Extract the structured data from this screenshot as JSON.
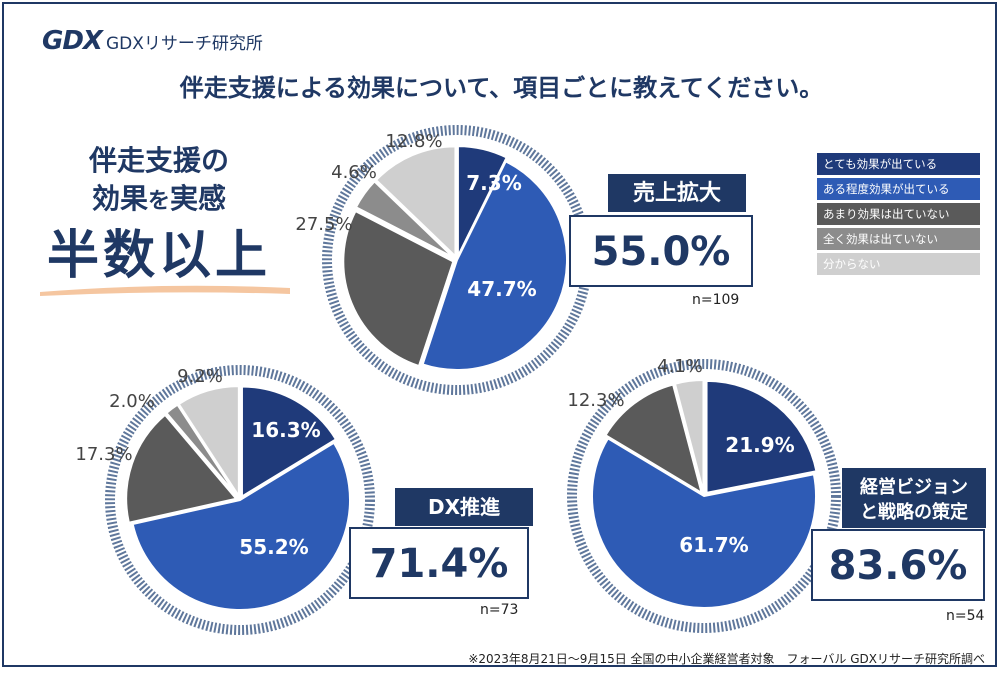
{
  "header": {
    "logo_mark": "GDX",
    "logo_text": "GDXリサーチ研究所",
    "title": "伴走支援による効果について、項目ごとに教えてください。"
  },
  "callout": {
    "line1": "伴走支援の",
    "line2_a": "効果",
    "line2_b": "を",
    "line2_c": "実感",
    "line3": "半数以上"
  },
  "legend": [
    {
      "label": "とても効果が出ている",
      "color": "#1f3a7a"
    },
    {
      "label": "ある程度効果が出ている",
      "color": "#2e5bb5"
    },
    {
      "label": "あまり効果は出ていない",
      "color": "#5a5a5a"
    },
    {
      "label": "全く効果は出ていない",
      "color": "#8c8c8c"
    },
    {
      "label": "分からない",
      "color": "#cfcfcf"
    }
  ],
  "chart_data": [
    {
      "type": "pie",
      "category": "売上拡大",
      "total": "55.0%",
      "n": "n=109",
      "labels": [
        "とても効果が出ている",
        "ある程度効果が出ている",
        "あまり効果は出ていない",
        "全く効果は出ていない",
        "分からない"
      ],
      "values": [
        7.3,
        47.7,
        27.5,
        4.6,
        12.8
      ],
      "value_labels": [
        "7.3%",
        "47.7%",
        "27.5%",
        "4.6%",
        "12.8%"
      ]
    },
    {
      "type": "pie",
      "category": "DX推進",
      "total": "71.4%",
      "n": "n=73",
      "labels": [
        "とても効果が出ている",
        "ある程度効果が出ている",
        "あまり効果は出ていない",
        "全く効果は出ていない",
        "分からない"
      ],
      "values": [
        16.3,
        55.2,
        17.3,
        2.0,
        9.2
      ],
      "value_labels": [
        "16.3%",
        "55.2%",
        "17.3%",
        "2.0%",
        "9.2%"
      ]
    },
    {
      "type": "pie",
      "category": "経営ビジョンと戦略の策定",
      "total": "83.6%",
      "n": "n=54",
      "labels": [
        "とても効果が出ている",
        "ある程度効果が出ている",
        "あまり効果は出ていない",
        "全く効果は出ていない",
        "分からない"
      ],
      "values": [
        21.9,
        61.7,
        12.3,
        0,
        4.1
      ],
      "value_labels": [
        "21.9%",
        "61.7%",
        "12.3%",
        "",
        "4.1%"
      ]
    }
  ],
  "footnote": "※2023年8月21日～9月15日 全国の中小企業経営者対象　フォーバル GDXリサーチ研究所調べ"
}
